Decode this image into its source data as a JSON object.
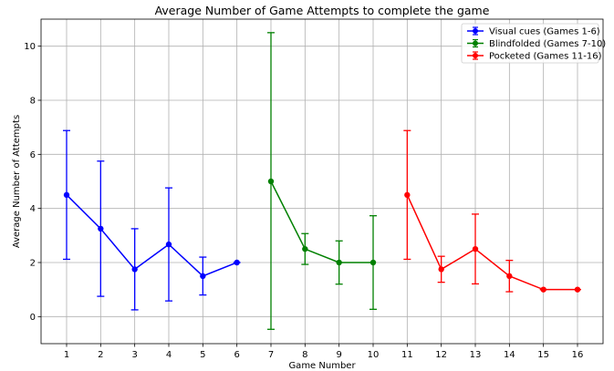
{
  "chart_data": {
    "type": "line",
    "title": "Average Number of Game Attempts to complete the game",
    "xlabel": "Game Number",
    "ylabel": "Average Number of Attempts",
    "xlim": [
      0.25,
      16.75
    ],
    "ylim": [
      -1,
      11
    ],
    "x_ticks": [
      1,
      2,
      3,
      4,
      5,
      6,
      7,
      8,
      9,
      10,
      11,
      12,
      13,
      14,
      15,
      16
    ],
    "y_ticks": [
      0,
      2,
      4,
      6,
      8,
      10
    ],
    "grid": true,
    "legend_position": "top-right",
    "series": [
      {
        "name": "Visual cues (Games 1-6)",
        "color": "#0000ff",
        "x": [
          1,
          2,
          3,
          4,
          5,
          6
        ],
        "y": [
          4.5,
          3.25,
          1.75,
          2.67,
          1.5,
          2.0
        ],
        "err_low": [
          2.12,
          0.75,
          0.25,
          0.58,
          0.8,
          2.0
        ],
        "err_high": [
          6.88,
          5.75,
          3.25,
          4.76,
          2.2,
          2.0
        ]
      },
      {
        "name": "Blindfolded (Games 7-10)",
        "color": "#008000",
        "x": [
          7,
          8,
          9,
          10
        ],
        "y": [
          5.0,
          2.5,
          2.0,
          2.0
        ],
        "err_low": [
          -0.47,
          1.93,
          1.2,
          0.27
        ],
        "err_high": [
          10.5,
          3.07,
          2.8,
          3.73
        ]
      },
      {
        "name": "Pocketed (Games 11-16)",
        "color": "#ff0000",
        "x": [
          11,
          12,
          13,
          14,
          15,
          16
        ],
        "y": [
          4.5,
          1.75,
          2.5,
          1.5,
          1.0,
          1.0
        ],
        "err_low": [
          2.12,
          1.27,
          1.21,
          0.92,
          1.0,
          1.0
        ],
        "err_high": [
          6.88,
          2.23,
          3.79,
          2.08,
          1.0,
          1.0
        ]
      }
    ]
  }
}
